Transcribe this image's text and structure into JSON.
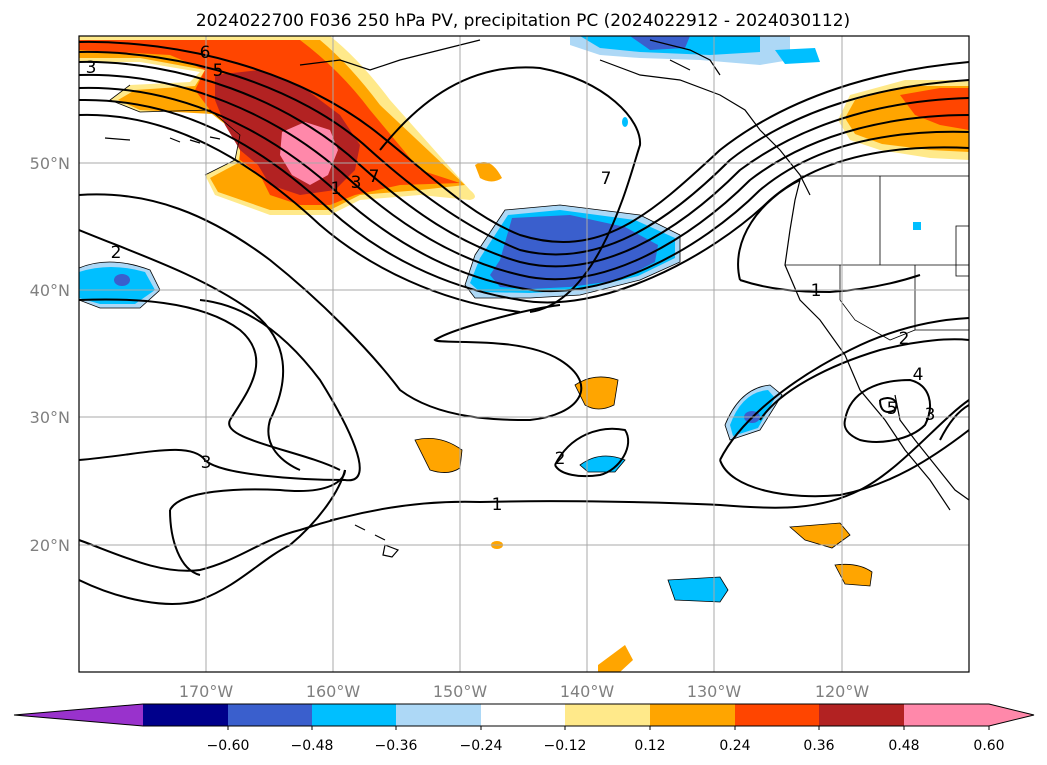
{
  "title": "2024022700 F036 250 hPa PV, precipitation PC (2024022912 - 2024030112)",
  "map": {
    "lat_labels": [
      "50°N",
      "40°N",
      "30°N",
      "20°N"
    ],
    "lon_labels": [
      "170°W",
      "160°W",
      "150°W",
      "140°W",
      "130°W",
      "120°W"
    ],
    "extent": {
      "lon_west": -180,
      "lon_east": -110,
      "lat_south": 10,
      "lat_north": 60
    },
    "pv_contour_labels": [
      "6",
      "5",
      "3",
      "7",
      "2",
      "3",
      "1",
      "1",
      "2",
      "4",
      "3",
      "5",
      "2",
      "1",
      "3",
      "7"
    ]
  },
  "colorbar": {
    "colors": [
      "#9932cc",
      "#00008b",
      "#3a5fcd",
      "#00bfff",
      "#add8f6",
      "#ffffff",
      "#ffe98a",
      "#ffa500",
      "#ff4500",
      "#b22222",
      "#ff88aa"
    ],
    "ticks": [
      "−0.60",
      "−0.48",
      "−0.36",
      "−0.24",
      "−0.12",
      "0.12",
      "0.24",
      "0.36",
      "0.48",
      "0.60"
    ]
  }
}
